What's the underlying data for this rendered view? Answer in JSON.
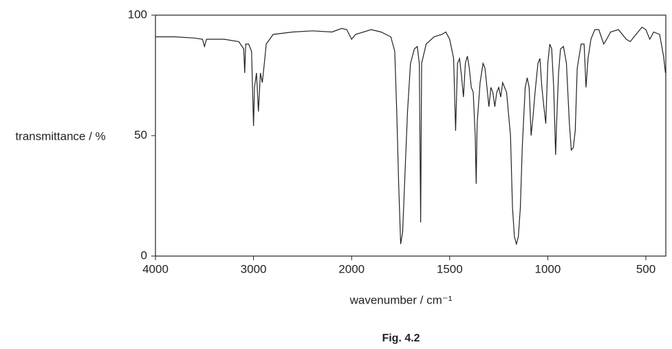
{
  "chart_data": {
    "type": "line",
    "caption": "Fig. 4.2",
    "xlabel": "wavenumber / cm⁻¹",
    "ylabel": "transmittance / %",
    "xlim": [
      4000,
      400
    ],
    "ylim": [
      0,
      100
    ],
    "xticks": [
      4000,
      3000,
      2000,
      1500,
      1000,
      500
    ],
    "yticks": [
      0,
      50,
      100
    ],
    "series": [
      {
        "color": "#231f20",
        "x": [
          4000,
          3800,
          3600,
          3520,
          3500,
          3480,
          3300,
          3150,
          3100,
          3090,
          3080,
          3050,
          3020,
          3000,
          2990,
          2970,
          2950,
          2930,
          2910,
          2890,
          2870,
          2800,
          2600,
          2400,
          2200,
          2100,
          2050,
          2000,
          1980,
          1900,
          1850,
          1800,
          1780,
          1770,
          1760,
          1750,
          1740,
          1730,
          1715,
          1700,
          1680,
          1665,
          1655,
          1648,
          1643,
          1620,
          1580,
          1540,
          1520,
          1500,
          1480,
          1470,
          1460,
          1450,
          1440,
          1430,
          1420,
          1410,
          1400,
          1390,
          1380,
          1370,
          1365,
          1360,
          1345,
          1330,
          1320,
          1310,
          1300,
          1290,
          1280,
          1270,
          1260,
          1250,
          1240,
          1230,
          1210,
          1190,
          1180,
          1170,
          1160,
          1150,
          1140,
          1130,
          1115,
          1105,
          1095,
          1085,
          1075,
          1065,
          1050,
          1040,
          1030,
          1020,
          1010,
          1000,
          990,
          980,
          970,
          960,
          955,
          945,
          935,
          920,
          905,
          890,
          880,
          870,
          860,
          850,
          830,
          815,
          805,
          795,
          780,
          760,
          740,
          715,
          700,
          680,
          640,
          600,
          580,
          550,
          520,
          500,
          480,
          460,
          430,
          410,
          400
        ],
        "values": [
          91,
          91,
          90.5,
          90,
          87,
          90,
          90,
          89,
          86,
          76,
          88,
          88,
          85,
          54,
          70,
          76,
          60,
          76,
          72,
          80,
          88,
          92,
          93,
          93.5,
          93,
          94.5,
          94,
          90,
          92,
          94,
          93,
          91,
          85,
          60,
          30,
          5,
          10,
          30,
          60,
          80,
          86,
          87,
          80,
          14,
          80,
          88,
          91,
          92,
          93,
          90,
          82,
          52,
          80,
          82,
          75,
          66,
          80,
          83,
          78,
          70,
          68,
          50,
          30,
          55,
          72,
          80,
          78,
          70,
          62,
          70,
          68,
          62,
          68,
          70,
          66,
          72,
          68,
          50,
          20,
          8,
          5,
          8,
          20,
          45,
          70,
          74,
          70,
          50,
          58,
          68,
          80,
          82,
          70,
          62,
          55,
          80,
          88,
          86,
          70,
          42,
          55,
          76,
          86,
          87,
          80,
          55,
          44,
          45,
          52,
          78,
          88,
          88,
          70,
          82,
          90,
          94,
          94,
          88,
          90,
          93,
          94,
          90,
          89,
          92,
          95,
          94,
          90,
          93,
          92,
          83,
          76
        ]
      }
    ]
  }
}
